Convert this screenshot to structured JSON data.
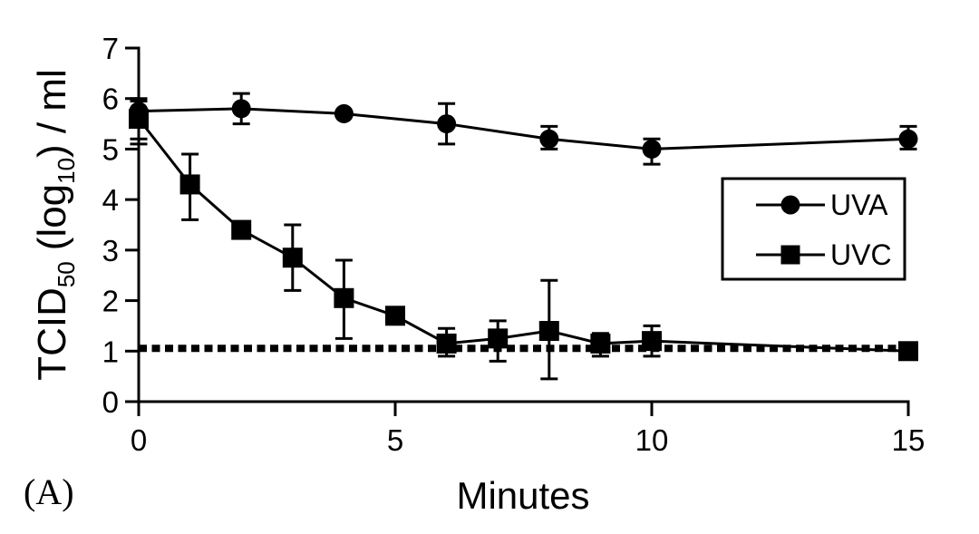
{
  "figure": {
    "panel_label": "(A)"
  },
  "colors": {
    "foreground": "#000000",
    "background": "#ffffff"
  },
  "axis": {
    "x_label": "Minutes",
    "y_label_plain": "TCID50 (log10) / ml",
    "y_label_parts": [
      "TCID",
      "50",
      "(log",
      "10",
      ") / ml"
    ]
  },
  "legend": {
    "items": [
      {
        "label": "UVA",
        "marker": "circle"
      },
      {
        "label": "UVC",
        "marker": "square"
      }
    ]
  },
  "chart_data": {
    "type": "line",
    "title": "",
    "xlabel": "Minutes",
    "ylabel": "TCID50 (log10) / ml",
    "xlim": [
      0,
      15
    ],
    "ylim": [
      0,
      7
    ],
    "xticks": [
      0,
      5,
      10,
      15
    ],
    "yticks": [
      0,
      1,
      2,
      3,
      4,
      5,
      6,
      7
    ],
    "grid": false,
    "legend_position": "right-middle",
    "reference_line": {
      "y": 1,
      "style": "dotted"
    },
    "series": [
      {
        "name": "UVA",
        "marker": "circle",
        "x": [
          0,
          2,
          4,
          6,
          8,
          10,
          15
        ],
        "y": [
          5.75,
          5.8,
          5.7,
          5.5,
          5.2,
          5.0,
          5.2
        ],
        "err_lo": [
          5.2,
          5.5,
          5.7,
          5.1,
          5.0,
          4.7,
          5.0
        ],
        "err_hi": [
          6.0,
          6.1,
          5.7,
          5.9,
          5.45,
          5.2,
          5.45
        ]
      },
      {
        "name": "UVC",
        "marker": "square",
        "x": [
          0,
          1,
          2,
          3,
          4,
          5,
          6,
          7,
          8,
          9,
          10,
          15
        ],
        "y": [
          5.6,
          4.3,
          3.4,
          2.85,
          2.05,
          1.7,
          1.15,
          1.25,
          1.4,
          1.15,
          1.2,
          1.0
        ],
        "err_lo": [
          5.1,
          3.6,
          3.4,
          2.2,
          1.25,
          1.7,
          0.9,
          0.8,
          0.45,
          0.9,
          0.9,
          1.0
        ],
        "err_hi": [
          5.95,
          4.9,
          3.4,
          3.5,
          2.8,
          1.7,
          1.45,
          1.6,
          2.4,
          1.35,
          1.5,
          1.0
        ]
      }
    ]
  }
}
